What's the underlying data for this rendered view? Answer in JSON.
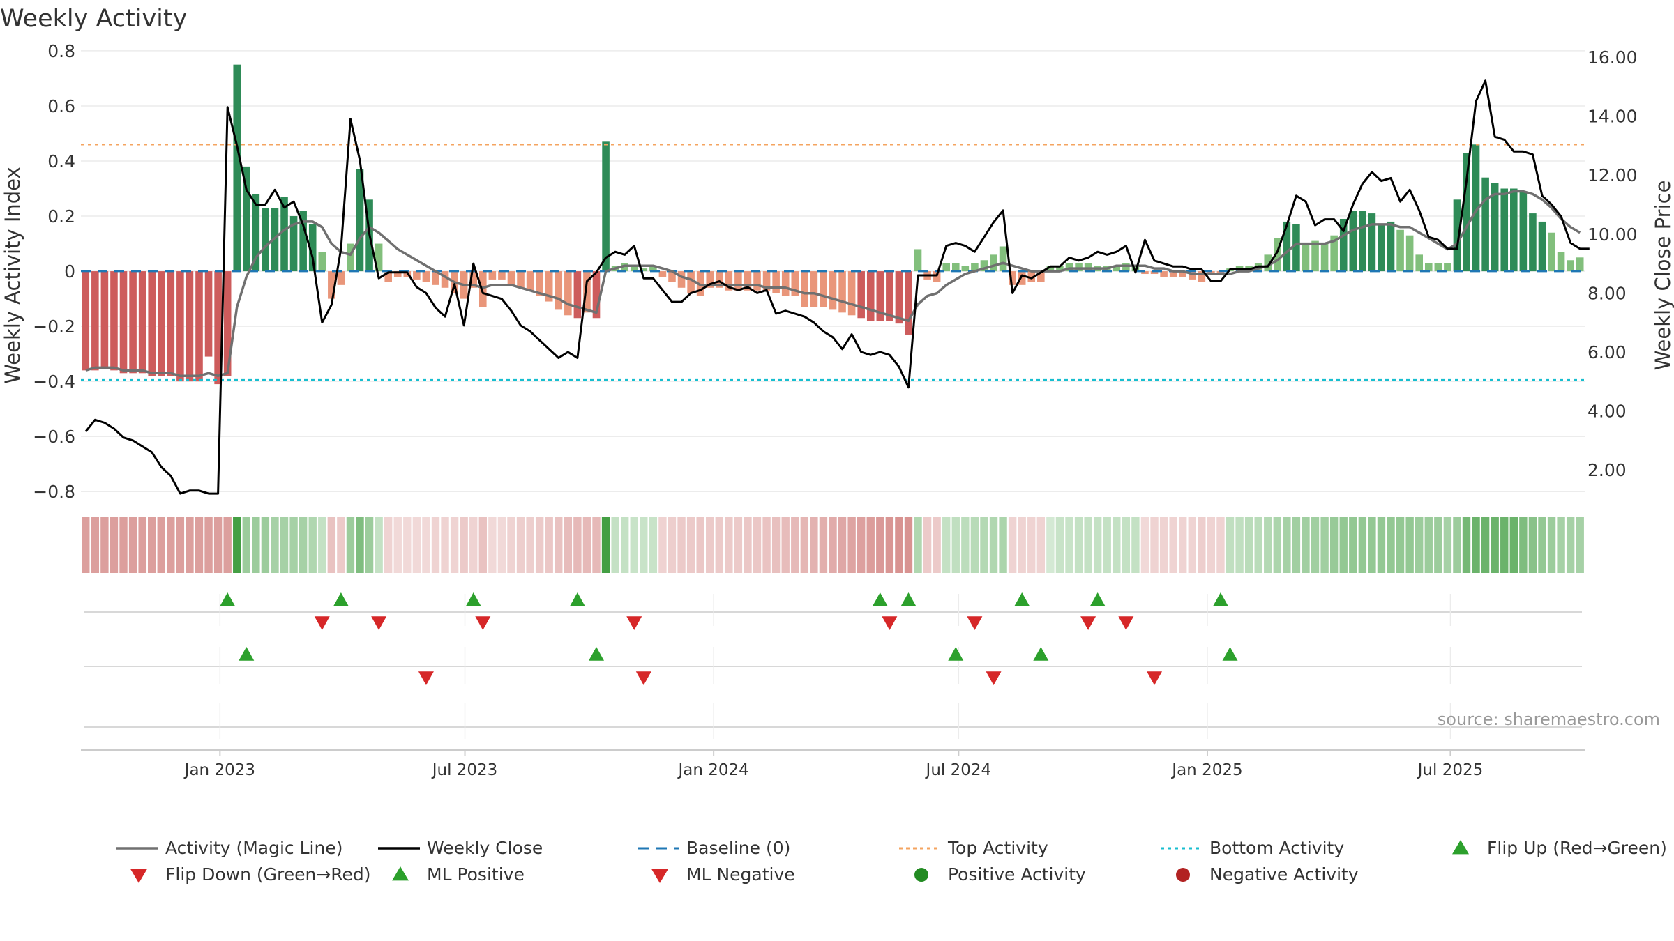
{
  "chart_data": {
    "type": "bar",
    "title": "Weekly Activity",
    "ylabel": "Weekly Activity Index",
    "y2label": "Weekly Close Price",
    "ylim": [
      -0.85,
      0.82
    ],
    "y2lim": [
      0.8,
      16.4
    ],
    "yticks": [
      0.8,
      0.6,
      0.4,
      0.2,
      0,
      -0.2,
      -0.4,
      -0.6,
      -0.8
    ],
    "ytick_labels": [
      "0.8",
      "0.6",
      "0.4",
      "0.2",
      "0",
      "−0.2",
      "−0.4",
      "−0.6",
      "−0.8"
    ],
    "y2ticks": [
      16,
      14,
      12,
      10,
      8,
      6,
      4,
      2
    ],
    "y2tick_labels": [
      "16.00",
      "14.00",
      "12.00",
      "10.00",
      "8.00",
      "6.00",
      "4.00",
      "2.00"
    ],
    "xticks": [
      {
        "label": "Jan 2023",
        "week": 14.7
      },
      {
        "label": "Jul 2023",
        "week": 40.6
      },
      {
        "label": "Jan 2024",
        "week": 66.9
      },
      {
        "label": "Jul 2024",
        "week": 92.8
      },
      {
        "label": "Jan 2025",
        "week": 119.1
      },
      {
        "label": "Jul 2025",
        "week": 144.8
      }
    ],
    "top_activity": 0.46,
    "bottom_activity": -0.395,
    "baseline": 0,
    "source": "source: sharemaestro.com",
    "colors": {
      "strong_green": "#2e8b57",
      "light_green": "#82bf7c",
      "strong_red": "#cd5c5c",
      "light_red": "#e9967a",
      "magic_line": "#707070",
      "close_line": "#000000",
      "baseline": "#1f77b4",
      "top": "#f4a460",
      "bottom": "#17becf",
      "flip_up": "#2ca02c",
      "flip_down": "#d62728",
      "positive_dot": "#228b22",
      "negative_dot": "#b22222"
    },
    "series": [
      {
        "name": "Weekly Activity Index",
        "values": [
          -0.36,
          -0.36,
          -0.35,
          -0.36,
          -0.37,
          -0.37,
          -0.37,
          -0.38,
          -0.38,
          -0.38,
          -0.4,
          -0.4,
          -0.4,
          -0.31,
          -0.41,
          -0.38,
          0.75,
          0.38,
          0.28,
          0.23,
          0.23,
          0.27,
          0.2,
          0.22,
          0.17,
          0.07,
          -0.1,
          -0.05,
          0.1,
          0.37,
          0.26,
          0.1,
          -0.04,
          -0.02,
          -0.02,
          -0.03,
          -0.04,
          -0.05,
          -0.06,
          -0.08,
          -0.1,
          -0.06,
          -0.13,
          -0.03,
          -0.03,
          -0.05,
          -0.06,
          -0.07,
          -0.09,
          -0.11,
          -0.14,
          -0.16,
          -0.17,
          -0.15,
          -0.17,
          0.47,
          0.02,
          0.03,
          0.02,
          0.01,
          0.02,
          -0.02,
          -0.04,
          -0.06,
          -0.08,
          -0.09,
          -0.06,
          -0.06,
          -0.07,
          -0.07,
          -0.07,
          -0.07,
          -0.07,
          -0.08,
          -0.09,
          -0.09,
          -0.13,
          -0.13,
          -0.13,
          -0.14,
          -0.15,
          -0.16,
          -0.17,
          -0.18,
          -0.18,
          -0.18,
          -0.19,
          -0.23,
          0.08,
          -0.03,
          -0.04,
          0.03,
          0.03,
          0.02,
          0.03,
          0.04,
          0.06,
          0.09,
          -0.05,
          -0.05,
          -0.04,
          -0.04,
          0.02,
          0.02,
          0.03,
          0.03,
          0.03,
          0.02,
          0.02,
          0.02,
          0.03,
          0.02,
          -0.01,
          -0.01,
          -0.02,
          -0.02,
          -0.02,
          -0.03,
          -0.04,
          -0.01,
          -0.01,
          0.01,
          0.02,
          0.02,
          0.03,
          0.06,
          0.12,
          0.18,
          0.17,
          0.1,
          0.11,
          0.1,
          0.13,
          0.19,
          0.22,
          0.22,
          0.21,
          0.17,
          0.18,
          0.15,
          0.13,
          0.06,
          0.03,
          0.03,
          0.03,
          0.26,
          0.43,
          0.46,
          0.34,
          0.32,
          0.3,
          0.3,
          0.29,
          0.21,
          0.18,
          0.14,
          0.07,
          0.04,
          0.05
        ]
      },
      {
        "name": "Activity (Magic Line)",
        "values": [
          -0.36,
          -0.35,
          -0.35,
          -0.35,
          -0.36,
          -0.36,
          -0.36,
          -0.37,
          -0.37,
          -0.37,
          -0.38,
          -0.38,
          -0.38,
          -0.37,
          -0.38,
          -0.37,
          -0.13,
          -0.02,
          0.05,
          0.09,
          0.12,
          0.15,
          0.17,
          0.18,
          0.18,
          0.16,
          0.1,
          0.07,
          0.06,
          0.12,
          0.16,
          0.14,
          0.11,
          0.08,
          0.06,
          0.04,
          0.02,
          0.0,
          -0.02,
          -0.04,
          -0.05,
          -0.05,
          -0.06,
          -0.05,
          -0.05,
          -0.05,
          -0.06,
          -0.07,
          -0.08,
          -0.09,
          -0.1,
          -0.12,
          -0.13,
          -0.14,
          -0.15,
          0.0,
          0.01,
          0.02,
          0.02,
          0.02,
          0.02,
          0.01,
          0.0,
          -0.02,
          -0.03,
          -0.05,
          -0.05,
          -0.05,
          -0.05,
          -0.05,
          -0.05,
          -0.05,
          -0.06,
          -0.06,
          -0.06,
          -0.07,
          -0.08,
          -0.08,
          -0.09,
          -0.1,
          -0.11,
          -0.12,
          -0.13,
          -0.14,
          -0.15,
          -0.16,
          -0.17,
          -0.18,
          -0.12,
          -0.09,
          -0.08,
          -0.05,
          -0.03,
          -0.01,
          0.0,
          0.01,
          0.02,
          0.03,
          0.02,
          0.01,
          0.0,
          0.0,
          0.0,
          0.0,
          0.01,
          0.01,
          0.01,
          0.01,
          0.01,
          0.02,
          0.02,
          0.02,
          0.02,
          0.01,
          0.01,
          0.0,
          0.0,
          -0.01,
          -0.01,
          -0.01,
          -0.01,
          -0.01,
          0.0,
          0.0,
          0.01,
          0.02,
          0.04,
          0.07,
          0.1,
          0.1,
          0.1,
          0.1,
          0.11,
          0.13,
          0.15,
          0.16,
          0.17,
          0.17,
          0.17,
          0.16,
          0.16,
          0.14,
          0.12,
          0.1,
          0.08,
          0.1,
          0.16,
          0.22,
          0.26,
          0.28,
          0.28,
          0.29,
          0.29,
          0.28,
          0.26,
          0.23,
          0.19,
          0.16,
          0.14
        ]
      },
      {
        "name": "Weekly Close",
        "values": [
          3.3,
          3.7,
          3.6,
          3.4,
          3.1,
          3.0,
          2.8,
          2.6,
          2.1,
          1.8,
          1.2,
          1.3,
          1.3,
          1.2,
          1.2,
          14.3,
          13.0,
          11.5,
          11.0,
          11.0,
          11.5,
          10.9,
          11.1,
          10.3,
          9.2,
          7.0,
          7.6,
          9.5,
          13.9,
          12.5,
          10.0,
          8.5,
          8.7,
          8.7,
          8.7,
          8.2,
          8.0,
          7.5,
          7.2,
          8.3,
          6.9,
          9.0,
          8.0,
          7.9,
          7.8,
          7.4,
          6.9,
          6.7,
          6.4,
          6.1,
          5.8,
          6.0,
          5.8,
          8.4,
          8.7,
          9.2,
          9.4,
          9.3,
          9.6,
          8.5,
          8.5,
          8.1,
          7.7,
          7.7,
          8.0,
          8.1,
          8.3,
          8.4,
          8.2,
          8.1,
          8.2,
          8.0,
          8.1,
          7.3,
          7.4,
          7.3,
          7.2,
          7.0,
          6.7,
          6.5,
          6.1,
          6.6,
          6.0,
          5.9,
          6.0,
          5.9,
          5.5,
          4.8,
          8.6,
          8.6,
          8.6,
          9.6,
          9.7,
          9.6,
          9.4,
          9.9,
          10.4,
          10.8,
          8.0,
          8.6,
          8.5,
          8.7,
          8.9,
          8.9,
          9.2,
          9.1,
          9.2,
          9.4,
          9.3,
          9.4,
          9.6,
          8.7,
          9.8,
          9.1,
          9.0,
          8.9,
          8.9,
          8.8,
          8.8,
          8.4,
          8.4,
          8.8,
          8.8,
          8.8,
          8.9,
          8.9,
          9.4,
          10.3,
          11.3,
          11.1,
          10.3,
          10.5,
          10.5,
          10.1,
          11.0,
          11.7,
          12.1,
          11.8,
          11.9,
          11.1,
          11.5,
          10.8,
          9.9,
          9.8,
          9.5,
          9.5,
          11.8,
          14.5,
          15.2,
          13.3,
          13.2,
          12.8,
          12.8,
          12.7,
          11.3,
          11.0,
          10.6,
          9.7,
          9.5,
          9.5
        ]
      }
    ],
    "activity_strip": {
      "band_opacities": [
        0.55,
        0.55,
        0.55,
        0.55,
        0.55,
        0.55,
        0.55,
        0.55,
        0.55,
        0.55,
        0.55,
        0.55,
        0.55,
        0.55,
        0.55,
        0.55,
        0.95,
        0.5,
        0.5,
        0.5,
        0.45,
        0.45,
        0.45,
        0.45,
        0.4,
        0.3,
        0.35,
        0.3,
        0.5,
        0.65,
        0.5,
        0.3,
        0.25,
        0.22,
        0.22,
        0.22,
        0.22,
        0.25,
        0.25,
        0.25,
        0.3,
        0.25,
        0.35,
        0.22,
        0.22,
        0.25,
        0.28,
        0.28,
        0.3,
        0.32,
        0.35,
        0.38,
        0.4,
        0.4,
        0.4,
        0.95,
        0.3,
        0.3,
        0.28,
        0.28,
        0.28,
        0.26,
        0.28,
        0.3,
        0.3,
        0.32,
        0.3,
        0.3,
        0.3,
        0.3,
        0.32,
        0.32,
        0.34,
        0.36,
        0.38,
        0.4,
        0.42,
        0.44,
        0.46,
        0.48,
        0.5,
        0.52,
        0.54,
        0.56,
        0.58,
        0.6,
        0.62,
        0.62,
        0.4,
        0.3,
        0.3,
        0.3,
        0.32,
        0.34,
        0.36,
        0.38,
        0.4,
        0.42,
        0.25,
        0.25,
        0.25,
        0.25,
        0.22,
        0.28,
        0.28,
        0.3,
        0.3,
        0.3,
        0.3,
        0.3,
        0.3,
        0.3,
        0.22,
        0.25,
        0.25,
        0.25,
        0.25,
        0.25,
        0.28,
        0.25,
        0.25,
        0.32,
        0.32,
        0.35,
        0.35,
        0.38,
        0.42,
        0.45,
        0.48,
        0.48,
        0.48,
        0.48,
        0.52,
        0.55,
        0.55,
        0.55,
        0.55,
        0.55,
        0.55,
        0.55,
        0.55,
        0.5,
        0.5,
        0.5,
        0.45,
        0.5,
        0.7,
        0.75,
        0.75,
        0.75,
        0.75,
        0.75,
        0.65,
        0.6,
        0.55,
        0.5,
        0.45,
        0.45,
        0.45
      ]
    },
    "markers": {
      "flip_up": [
        15,
        27,
        41,
        52,
        84,
        87,
        99,
        107,
        120
      ],
      "flip_down": [
        25,
        31,
        42,
        58,
        85,
        94,
        106,
        110
      ],
      "ml_positive": [
        17,
        54,
        92,
        101,
        121
      ],
      "ml_negative": [
        36,
        59,
        96,
        113
      ]
    },
    "legend": [
      {
        "label": "Activity (Magic Line)",
        "symbol": "line",
        "color": "#707070"
      },
      {
        "label": "Weekly Close",
        "symbol": "line",
        "color": "#000000"
      },
      {
        "label": "Baseline (0)",
        "symbol": "dash",
        "color": "#1f77b4"
      },
      {
        "label": "Top Activity",
        "symbol": "dot-line",
        "color": "#f4a460"
      },
      {
        "label": "Bottom Activity",
        "symbol": "dot-line",
        "color": "#17becf"
      },
      {
        "label": "Flip Up (Red→Green)",
        "symbol": "triangle-up",
        "color": "#2ca02c"
      },
      {
        "label": "Flip Down (Green→Red)",
        "symbol": "triangle-down",
        "color": "#d62728"
      },
      {
        "label": "ML Positive",
        "symbol": "triangle-up",
        "color": "#2ca02c"
      },
      {
        "label": "ML Negative",
        "symbol": "triangle-down",
        "color": "#d62728"
      },
      {
        "label": "Positive Activity",
        "symbol": "circle",
        "color": "#228b22"
      },
      {
        "label": "Negative Activity",
        "symbol": "circle",
        "color": "#b22222"
      }
    ]
  }
}
